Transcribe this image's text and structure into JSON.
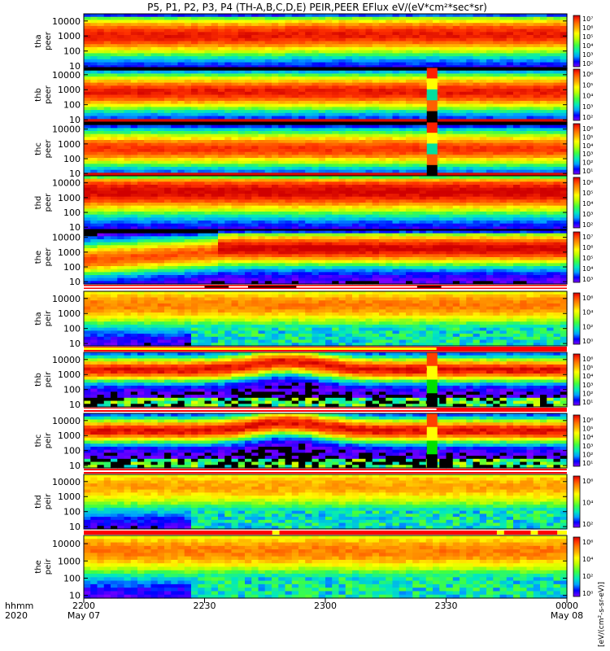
{
  "chart_data": {
    "type": "heatmap",
    "title": "P5, P1, P2, P3, P4 (TH-A,B,C,D,E) PEIR,PEER EFlux eV/(eV*cm²*sec*sr)",
    "colorbar_label": "[eV/(cm²-s-sr-eV)]",
    "y_scale": "log",
    "ylim": [
      7,
      30000
    ],
    "y_ticks": [
      "10",
      "100",
      "1000",
      "10000"
    ],
    "x_ticks": [
      {
        "time": "2200",
        "date": "May 07"
      },
      {
        "time": "2230",
        "date": ""
      },
      {
        "time": "2300",
        "date": ""
      },
      {
        "time": "2330",
        "date": ""
      },
      {
        "time": "0000",
        "date": "May 08"
      }
    ],
    "x_corner_labels": [
      "hhmm",
      "2020"
    ],
    "colorscale": [
      "#7f00ff",
      "#0000ff",
      "#00a0ff",
      "#00e8c0",
      "#40ff40",
      "#c0ff00",
      "#ffff00",
      "#ffb000",
      "#ff7000",
      "#ff3000",
      "#d00000"
    ],
    "panels": [
      {
        "probe": "tha",
        "species": "peer",
        "cbar_ticks": [
          "10²",
          "10³",
          "10⁴",
          "10⁵",
          "10⁶",
          "10⁷"
        ]
      },
      {
        "probe": "thb",
        "species": "peer",
        "cbar_ticks": [
          "10⁶",
          "10⁵",
          "10⁴",
          "10³",
          "10²"
        ]
      },
      {
        "probe": "thc",
        "species": "peer",
        "cbar_ticks": [
          "10⁶",
          "10⁵",
          "10⁴",
          "10³",
          "10²",
          "10¹"
        ]
      },
      {
        "probe": "thd",
        "species": "peer",
        "cbar_ticks": [
          "10⁶",
          "10⁵",
          "10⁴",
          "10³",
          "10²"
        ]
      },
      {
        "probe": "the",
        "species": "peer",
        "cbar_ticks": [
          "10⁷",
          "10⁶",
          "10⁵",
          "10⁴",
          "10³"
        ]
      },
      {
        "probe": "tha",
        "species": "peir",
        "cbar_ticks": [
          "10⁶",
          "10⁴",
          "10²",
          "10⁰"
        ]
      },
      {
        "probe": "thb",
        "species": "peir",
        "cbar_ticks": [
          "10⁶",
          "10⁵",
          "10⁴",
          "10³",
          "10²",
          "10¹"
        ]
      },
      {
        "probe": "thc",
        "species": "peir",
        "cbar_ticks": [
          "10⁶",
          "10⁵",
          "10⁴",
          "10³",
          "10²",
          "10¹"
        ]
      },
      {
        "probe": "thd",
        "species": "peir",
        "cbar_ticks": [
          "10⁶",
          "10⁴",
          "10²"
        ]
      },
      {
        "probe": "the",
        "species": "peir",
        "cbar_ticks": [
          "10⁶",
          "10⁴",
          "10²",
          "10⁰"
        ]
      }
    ]
  }
}
